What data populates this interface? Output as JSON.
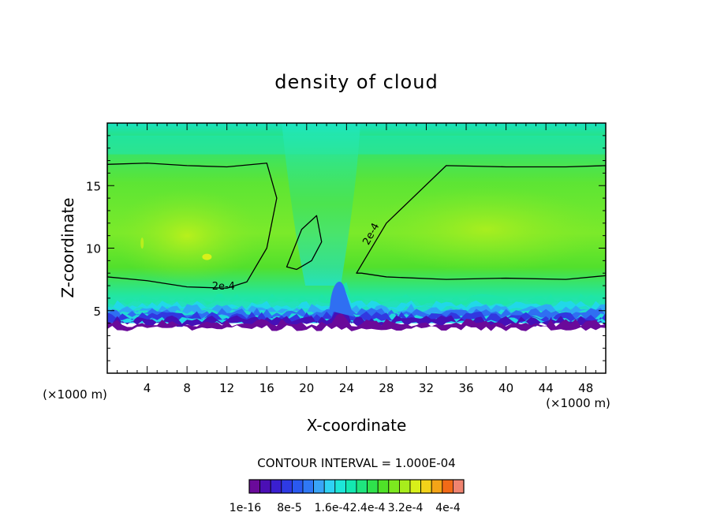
{
  "chart_data": {
    "type": "heatmap",
    "title": "density of cloud",
    "xlabel": "X-coordinate",
    "ylabel": "Z-coordinate",
    "x_unit": "(×1000 m)",
    "y_unit": "(×1000 m)",
    "xlim": [
      0,
      50
    ],
    "ylim": [
      0,
      20
    ],
    "x_ticks": [
      4,
      8,
      12,
      16,
      20,
      24,
      28,
      32,
      36,
      40,
      44,
      48
    ],
    "y_ticks": [
      5,
      10,
      15
    ],
    "grid": false,
    "contour_interval_text": "CONTOUR INTERVAL = 1.000E-04",
    "contour_label": "2e-4",
    "colorbar_tick_labels": [
      "1e-16",
      "8e-5",
      "1.6e-4",
      "2.4e-4",
      "3.2e-4",
      "4e-4"
    ],
    "colorbar_levels": 20,
    "colorbar_colors": [
      "#6a0a9a",
      "#4b0fb5",
      "#3a1fd0",
      "#2e3ae4",
      "#2a59f0",
      "#2f78f5",
      "#39a4f7",
      "#2fd2f4",
      "#1de6d8",
      "#13e8b0",
      "#1fe57e",
      "#2fe24c",
      "#4fe228",
      "#7ce81f",
      "#a8ed1c",
      "#d8f01a",
      "#f2d21a",
      "#f4a417",
      "#f26a17",
      "#f08470"
    ],
    "cloud_region": {
      "z_base_typical": 4,
      "z_base_min": 3.3,
      "upper_cloud_top": 19.5,
      "cyan_band_z": [
        17.5,
        19
      ],
      "gap_x": [
        17.5,
        25
      ]
    },
    "contour_2e4_approx": [
      {
        "name": "left",
        "x": [
          0,
          4,
          8,
          12,
          16,
          17,
          16,
          14,
          12,
          8,
          4,
          0
        ],
        "z": [
          16.7,
          16.8,
          16.6,
          16.5,
          16.8,
          14,
          10,
          7.3,
          6.8,
          6.9,
          7.4,
          7.7
        ]
      },
      {
        "name": "middle",
        "x": [
          18,
          19.5,
          21,
          21.5,
          20.5,
          19,
          18
        ],
        "z": [
          8.5,
          11.5,
          12.6,
          10.5,
          9,
          8.3,
          8.5
        ]
      },
      {
        "name": "right",
        "x": [
          25,
          28,
          34,
          40,
          46,
          50,
          50,
          46,
          40,
          34,
          28,
          25.5,
          25
        ],
        "z": [
          8,
          12,
          16.6,
          16.5,
          16.5,
          16.6,
          7.8,
          7.5,
          7.6,
          7.5,
          7.7,
          8,
          8
        ]
      }
    ]
  }
}
